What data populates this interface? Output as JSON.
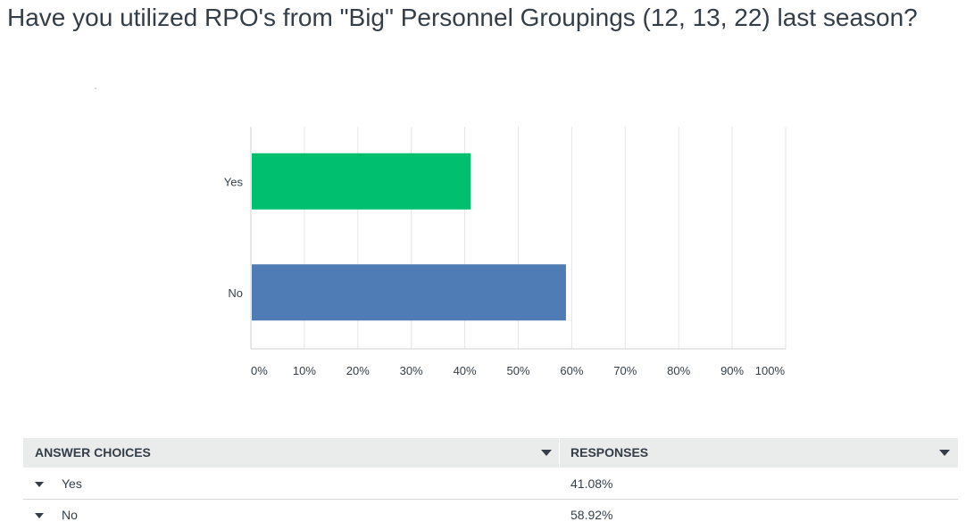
{
  "question": {
    "title": "Have you utilized RPO's from \"Big\" Personnel Groupings (12, 13, 22) last season?"
  },
  "colors": {
    "yes_bar": "#00bf6f",
    "no_bar": "#507cb6",
    "grid": "#e6e6e6",
    "axis": "#d0d0d0",
    "text": "#333e48"
  },
  "chart_data": {
    "type": "bar",
    "orientation": "horizontal",
    "categories": [
      "Yes",
      "No"
    ],
    "values": [
      41.08,
      58.92
    ],
    "xlim": [
      0,
      100
    ],
    "xticks": [
      "0%",
      "10%",
      "20%",
      "30%",
      "40%",
      "50%",
      "60%",
      "70%",
      "80%",
      "90%",
      "100%"
    ],
    "grid": true,
    "legend": "none"
  },
  "table": {
    "headers": {
      "answer": "ANSWER CHOICES",
      "responses": "RESPONSES"
    },
    "rows": [
      {
        "label": "Yes",
        "value": "41.08%"
      },
      {
        "label": "No",
        "value": "58.92%"
      }
    ],
    "icons": {
      "sort": "sort-down-icon",
      "expand": "expand-caret-icon"
    }
  }
}
